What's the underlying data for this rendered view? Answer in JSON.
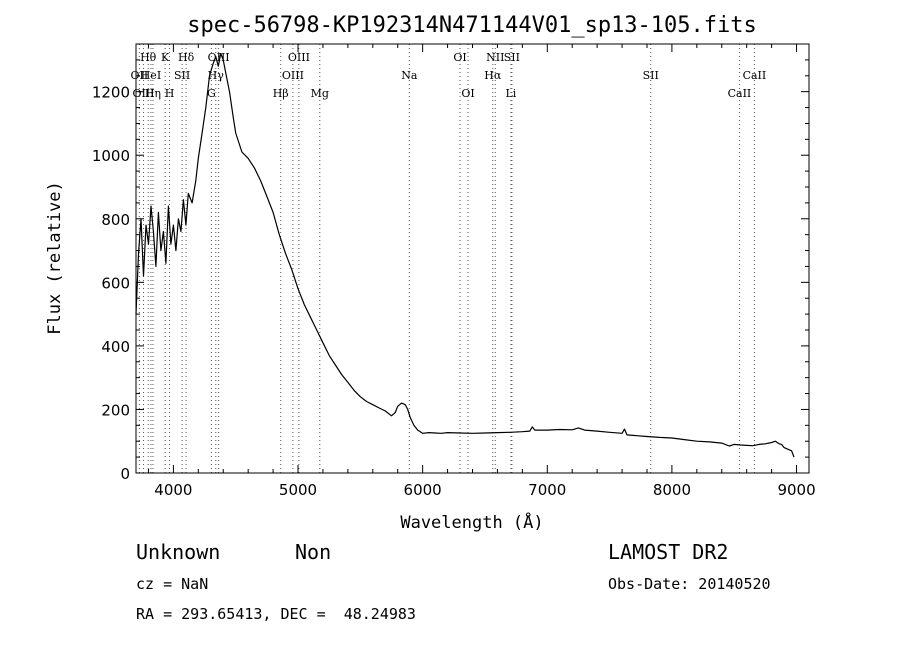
{
  "chart_data": {
    "type": "line",
    "title": "spec-56798-KP192314N471144V01_sp13-105.fits",
    "xlabel": "Wavelength (Å)",
    "ylabel": "Flux (relative)",
    "xlim": [
      3700,
      9100
    ],
    "ylim": [
      0,
      1350
    ],
    "xticks": [
      4000,
      5000,
      6000,
      7000,
      8000,
      9000
    ],
    "yticks": [
      0,
      200,
      400,
      600,
      800,
      1000,
      1200
    ],
    "grid": false,
    "series": [
      {
        "x": [
          3700,
          3720,
          3740,
          3760,
          3780,
          3800,
          3820,
          3840,
          3860,
          3880,
          3900,
          3920,
          3940,
          3960,
          3980,
          4000,
          4020,
          4040,
          4060,
          4080,
          4100,
          4120,
          4150,
          4180,
          4200,
          4230,
          4260,
          4290,
          4320,
          4340,
          4360,
          4380,
          4400,
          4420,
          4450,
          4480,
          4500,
          4550,
          4600,
          4650,
          4700,
          4750,
          4800,
          4850,
          4900,
          4950,
          5000,
          5050,
          5100,
          5150,
          5200,
          5250,
          5300,
          5350,
          5400,
          5450,
          5500,
          5550,
          5600,
          5650,
          5700,
          5750,
          5780,
          5800,
          5830,
          5860,
          5880,
          5900,
          5930,
          5960,
          6000,
          6050,
          6100,
          6150,
          6200,
          6300,
          6400,
          6500,
          6600,
          6700,
          6800,
          6860,
          6880,
          6900,
          7000,
          7100,
          7200,
          7250,
          7300,
          7400,
          7500,
          7600,
          7620,
          7640,
          7700,
          7800,
          7900,
          8000,
          8100,
          8200,
          8300,
          8400,
          8460,
          8500,
          8550,
          8600,
          8650,
          8700,
          8750,
          8800,
          8830,
          8860,
          8880,
          8900,
          8930,
          8960,
          8980
        ],
        "y": [
          500,
          690,
          800,
          620,
          780,
          720,
          840,
          760,
          650,
          820,
          700,
          760,
          660,
          840,
          720,
          780,
          700,
          800,
          760,
          860,
          780,
          880,
          850,
          920,
          990,
          1070,
          1150,
          1250,
          1290,
          1310,
          1280,
          1320,
          1300,
          1260,
          1200,
          1120,
          1070,
          1010,
          990,
          960,
          920,
          870,
          820,
          750,
          690,
          640,
          580,
          530,
          490,
          450,
          410,
          370,
          340,
          310,
          285,
          260,
          240,
          225,
          215,
          205,
          195,
          180,
          190,
          210,
          220,
          215,
          200,
          175,
          150,
          135,
          125,
          127,
          126,
          125,
          127,
          126,
          125,
          126,
          127,
          128,
          130,
          132,
          145,
          135,
          135,
          137,
          136,
          142,
          135,
          132,
          128,
          125,
          138,
          120,
          118,
          115,
          112,
          110,
          105,
          100,
          98,
          94,
          85,
          90,
          88,
          87,
          86,
          90,
          92,
          96,
          100,
          92,
          90,
          80,
          75,
          70,
          50
        ]
      }
    ],
    "lines": [
      {
        "label": "Hθ",
        "x": 3798,
        "row": 0
      },
      {
        "label": "K",
        "x": 3934,
        "row": 0
      },
      {
        "label": "Hδ",
        "x": 4102,
        "row": 0
      },
      {
        "label": "OII",
        "x": 3727,
        "row": 1
      },
      {
        "label": "HeI",
        "x": 3820,
        "row": 1
      },
      {
        "label": "SII",
        "x": 4070,
        "row": 1
      },
      {
        "label": "OIII",
        "x": 3760,
        "row": 2
      },
      {
        "label": "Hη",
        "x": 3836,
        "row": 2
      },
      {
        "label": "H",
        "x": 3969,
        "row": 2
      },
      {
        "label": "OIII",
        "x": 4363,
        "row": 0
      },
      {
        "label": "Hγ",
        "x": 4340,
        "row": 1
      },
      {
        "label": "G",
        "x": 4305,
        "row": 2
      },
      {
        "label": "OIII",
        "x": 5007,
        "row": 0
      },
      {
        "label": "OIII",
        "x": 4959,
        "row": 1
      },
      {
        "label": "Hβ",
        "x": 4861,
        "row": 2
      },
      {
        "label": "Mg",
        "x": 5175,
        "row": 2
      },
      {
        "label": "Na",
        "x": 5893,
        "row": 1
      },
      {
        "label": "OI",
        "x": 6300,
        "row": 0
      },
      {
        "label": "OI",
        "x": 6364,
        "row": 2
      },
      {
        "label": "NII",
        "x": 6583,
        "row": 0
      },
      {
        "label": "SII",
        "x": 6716,
        "row": 0
      },
      {
        "label": "Hα",
        "x": 6563,
        "row": 1
      },
      {
        "label": "Li",
        "x": 6708,
        "row": 2
      },
      {
        "label": "SII",
        "x": 7830,
        "row": 1
      },
      {
        "label": "CaII",
        "x": 8662,
        "row": 1
      },
      {
        "label": "CaII",
        "x": 8542,
        "row": 2
      }
    ]
  },
  "info": {
    "class": "Unknown",
    "subclass": "Non",
    "cz": "cz = NaN",
    "radec": "RA = 293.65413, DEC =  48.24983",
    "survey": "LAMOST DR2",
    "obsdate": "Obs-Date: 20140520"
  }
}
